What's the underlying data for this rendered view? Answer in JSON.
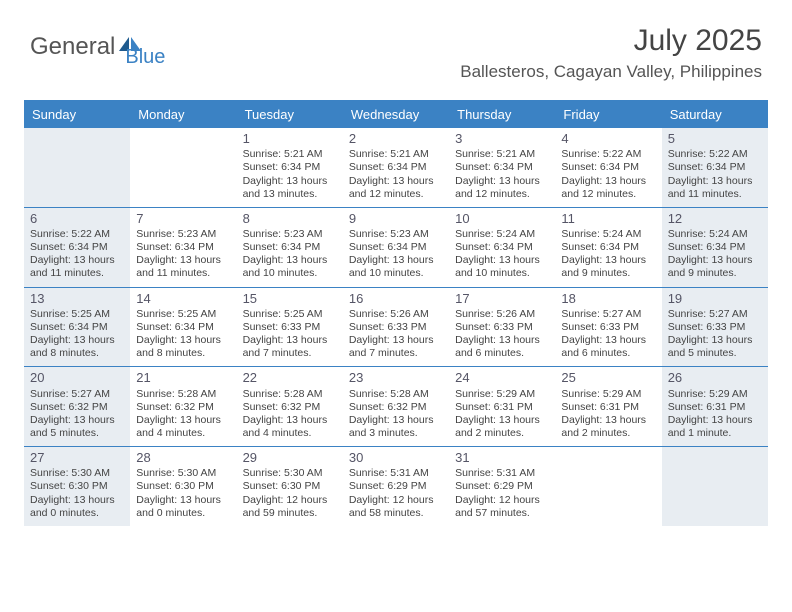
{
  "logo": {
    "text1": "General",
    "text2": "Blue"
  },
  "title": "July 2025",
  "location": "Ballesteros, Cagayan Valley, Philippines",
  "day_headers": [
    "Sunday",
    "Monday",
    "Tuesday",
    "Wednesday",
    "Thursday",
    "Friday",
    "Saturday"
  ],
  "colors": {
    "accent": "#3b82c4",
    "shaded_bg": "#e8edf2",
    "text": "#444444"
  },
  "weeks": [
    [
      {
        "day": "",
        "shaded": true,
        "sunrise": "",
        "sunset": "",
        "daylight": ""
      },
      {
        "day": "",
        "shaded": false,
        "sunrise": "",
        "sunset": "",
        "daylight": ""
      },
      {
        "day": "1",
        "shaded": false,
        "sunrise": "Sunrise: 5:21 AM",
        "sunset": "Sunset: 6:34 PM",
        "daylight": "Daylight: 13 hours and 13 minutes."
      },
      {
        "day": "2",
        "shaded": false,
        "sunrise": "Sunrise: 5:21 AM",
        "sunset": "Sunset: 6:34 PM",
        "daylight": "Daylight: 13 hours and 12 minutes."
      },
      {
        "day": "3",
        "shaded": false,
        "sunrise": "Sunrise: 5:21 AM",
        "sunset": "Sunset: 6:34 PM",
        "daylight": "Daylight: 13 hours and 12 minutes."
      },
      {
        "day": "4",
        "shaded": false,
        "sunrise": "Sunrise: 5:22 AM",
        "sunset": "Sunset: 6:34 PM",
        "daylight": "Daylight: 13 hours and 12 minutes."
      },
      {
        "day": "5",
        "shaded": true,
        "sunrise": "Sunrise: 5:22 AM",
        "sunset": "Sunset: 6:34 PM",
        "daylight": "Daylight: 13 hours and 11 minutes."
      }
    ],
    [
      {
        "day": "6",
        "shaded": true,
        "sunrise": "Sunrise: 5:22 AM",
        "sunset": "Sunset: 6:34 PM",
        "daylight": "Daylight: 13 hours and 11 minutes."
      },
      {
        "day": "7",
        "shaded": false,
        "sunrise": "Sunrise: 5:23 AM",
        "sunset": "Sunset: 6:34 PM",
        "daylight": "Daylight: 13 hours and 11 minutes."
      },
      {
        "day": "8",
        "shaded": false,
        "sunrise": "Sunrise: 5:23 AM",
        "sunset": "Sunset: 6:34 PM",
        "daylight": "Daylight: 13 hours and 10 minutes."
      },
      {
        "day": "9",
        "shaded": false,
        "sunrise": "Sunrise: 5:23 AM",
        "sunset": "Sunset: 6:34 PM",
        "daylight": "Daylight: 13 hours and 10 minutes."
      },
      {
        "day": "10",
        "shaded": false,
        "sunrise": "Sunrise: 5:24 AM",
        "sunset": "Sunset: 6:34 PM",
        "daylight": "Daylight: 13 hours and 10 minutes."
      },
      {
        "day": "11",
        "shaded": false,
        "sunrise": "Sunrise: 5:24 AM",
        "sunset": "Sunset: 6:34 PM",
        "daylight": "Daylight: 13 hours and 9 minutes."
      },
      {
        "day": "12",
        "shaded": true,
        "sunrise": "Sunrise: 5:24 AM",
        "sunset": "Sunset: 6:34 PM",
        "daylight": "Daylight: 13 hours and 9 minutes."
      }
    ],
    [
      {
        "day": "13",
        "shaded": true,
        "sunrise": "Sunrise: 5:25 AM",
        "sunset": "Sunset: 6:34 PM",
        "daylight": "Daylight: 13 hours and 8 minutes."
      },
      {
        "day": "14",
        "shaded": false,
        "sunrise": "Sunrise: 5:25 AM",
        "sunset": "Sunset: 6:34 PM",
        "daylight": "Daylight: 13 hours and 8 minutes."
      },
      {
        "day": "15",
        "shaded": false,
        "sunrise": "Sunrise: 5:25 AM",
        "sunset": "Sunset: 6:33 PM",
        "daylight": "Daylight: 13 hours and 7 minutes."
      },
      {
        "day": "16",
        "shaded": false,
        "sunrise": "Sunrise: 5:26 AM",
        "sunset": "Sunset: 6:33 PM",
        "daylight": "Daylight: 13 hours and 7 minutes."
      },
      {
        "day": "17",
        "shaded": false,
        "sunrise": "Sunrise: 5:26 AM",
        "sunset": "Sunset: 6:33 PM",
        "daylight": "Daylight: 13 hours and 6 minutes."
      },
      {
        "day": "18",
        "shaded": false,
        "sunrise": "Sunrise: 5:27 AM",
        "sunset": "Sunset: 6:33 PM",
        "daylight": "Daylight: 13 hours and 6 minutes."
      },
      {
        "day": "19",
        "shaded": true,
        "sunrise": "Sunrise: 5:27 AM",
        "sunset": "Sunset: 6:33 PM",
        "daylight": "Daylight: 13 hours and 5 minutes."
      }
    ],
    [
      {
        "day": "20",
        "shaded": true,
        "sunrise": "Sunrise: 5:27 AM",
        "sunset": "Sunset: 6:32 PM",
        "daylight": "Daylight: 13 hours and 5 minutes."
      },
      {
        "day": "21",
        "shaded": false,
        "sunrise": "Sunrise: 5:28 AM",
        "sunset": "Sunset: 6:32 PM",
        "daylight": "Daylight: 13 hours and 4 minutes."
      },
      {
        "day": "22",
        "shaded": false,
        "sunrise": "Sunrise: 5:28 AM",
        "sunset": "Sunset: 6:32 PM",
        "daylight": "Daylight: 13 hours and 4 minutes."
      },
      {
        "day": "23",
        "shaded": false,
        "sunrise": "Sunrise: 5:28 AM",
        "sunset": "Sunset: 6:32 PM",
        "daylight": "Daylight: 13 hours and 3 minutes."
      },
      {
        "day": "24",
        "shaded": false,
        "sunrise": "Sunrise: 5:29 AM",
        "sunset": "Sunset: 6:31 PM",
        "daylight": "Daylight: 13 hours and 2 minutes."
      },
      {
        "day": "25",
        "shaded": false,
        "sunrise": "Sunrise: 5:29 AM",
        "sunset": "Sunset: 6:31 PM",
        "daylight": "Daylight: 13 hours and 2 minutes."
      },
      {
        "day": "26",
        "shaded": true,
        "sunrise": "Sunrise: 5:29 AM",
        "sunset": "Sunset: 6:31 PM",
        "daylight": "Daylight: 13 hours and 1 minute."
      }
    ],
    [
      {
        "day": "27",
        "shaded": true,
        "sunrise": "Sunrise: 5:30 AM",
        "sunset": "Sunset: 6:30 PM",
        "daylight": "Daylight: 13 hours and 0 minutes."
      },
      {
        "day": "28",
        "shaded": false,
        "sunrise": "Sunrise: 5:30 AM",
        "sunset": "Sunset: 6:30 PM",
        "daylight": "Daylight: 13 hours and 0 minutes."
      },
      {
        "day": "29",
        "shaded": false,
        "sunrise": "Sunrise: 5:30 AM",
        "sunset": "Sunset: 6:30 PM",
        "daylight": "Daylight: 12 hours and 59 minutes."
      },
      {
        "day": "30",
        "shaded": false,
        "sunrise": "Sunrise: 5:31 AM",
        "sunset": "Sunset: 6:29 PM",
        "daylight": "Daylight: 12 hours and 58 minutes."
      },
      {
        "day": "31",
        "shaded": false,
        "sunrise": "Sunrise: 5:31 AM",
        "sunset": "Sunset: 6:29 PM",
        "daylight": "Daylight: 12 hours and 57 minutes."
      },
      {
        "day": "",
        "shaded": false,
        "sunrise": "",
        "sunset": "",
        "daylight": ""
      },
      {
        "day": "",
        "shaded": true,
        "sunrise": "",
        "sunset": "",
        "daylight": ""
      }
    ]
  ]
}
